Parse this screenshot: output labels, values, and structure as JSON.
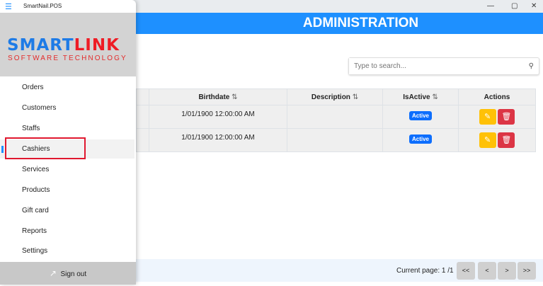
{
  "window": {
    "title": "SmartNail.POS",
    "minimize": "—",
    "maximize": "▢",
    "close": "✕"
  },
  "header": {
    "title": "ADMINISTRATION"
  },
  "search": {
    "placeholder": "Type to search...",
    "icon": "search-icon"
  },
  "table": {
    "columns": [
      "",
      "Birthdate",
      "Description",
      "IsActive",
      "Actions"
    ],
    "rows": [
      {
        "birthdate": "1/01/1900 12:00:00 AM",
        "description": "",
        "status": "Active"
      },
      {
        "birthdate": "1/01/1900 12:00:00 AM",
        "description": "",
        "status": "Active"
      }
    ]
  },
  "pager": {
    "current": "Current page: 1 /1",
    "first": "<<",
    "prev": "<",
    "next": ">",
    "last": ">>"
  },
  "drawer": {
    "logo_top_blue": "SMART",
    "logo_top_red": "LINK",
    "logo_sub": "SOFTWARE TECHNOLOGY",
    "items": [
      {
        "label": "Orders"
      },
      {
        "label": "Customers"
      },
      {
        "label": "Staffs"
      },
      {
        "label": "Cashiers"
      },
      {
        "label": "Services"
      },
      {
        "label": "Products"
      },
      {
        "label": "Gift card"
      },
      {
        "label": "Reports"
      },
      {
        "label": "Settings"
      }
    ],
    "selected": "Cashiers",
    "signout": "Sign out"
  },
  "colors": {
    "accent": "#1e90ff",
    "edit": "#ffc107",
    "delete": "#dc3545",
    "badge": "#0d6efd",
    "highlight": "#e0182f"
  }
}
